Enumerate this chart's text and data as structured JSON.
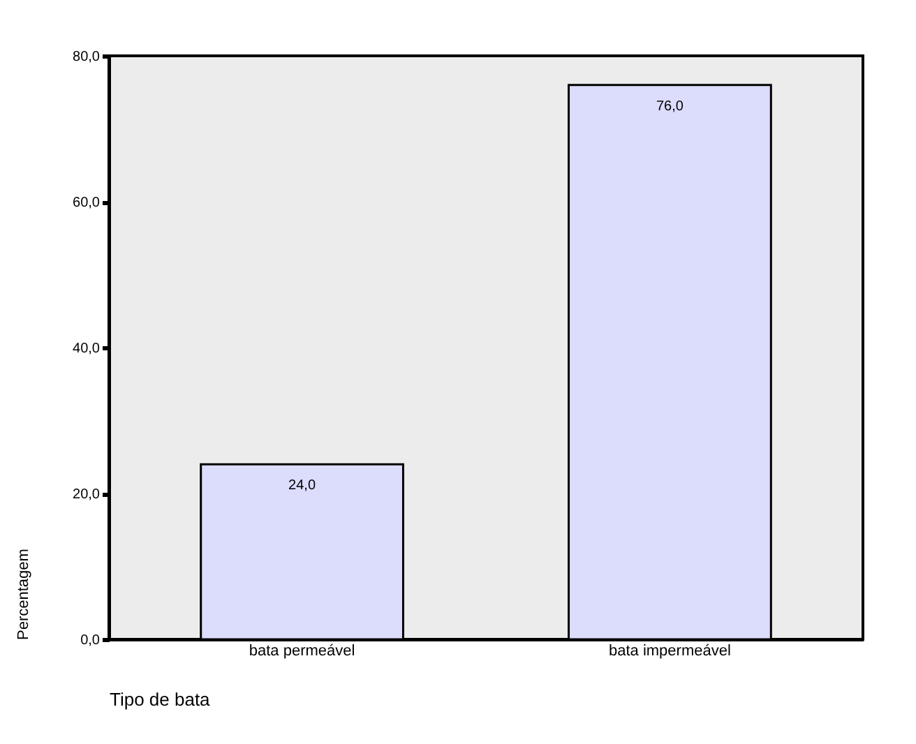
{
  "chart_data": {
    "type": "bar",
    "xlabel": "Tipo de bata",
    "ylabel": "Percentagem",
    "categories": [
      "bata permeável",
      "bata impermeável"
    ],
    "values": [
      24.0,
      76.0
    ],
    "value_labels": [
      "24,0",
      "76,0"
    ],
    "color": "#dcdcfc",
    "ylim": [
      0,
      80
    ],
    "yticks": [
      {
        "value": 0,
        "label": "0,0"
      },
      {
        "value": 20,
        "label": "20,0"
      },
      {
        "value": 40,
        "label": "40,0"
      },
      {
        "value": 60,
        "label": "60,0"
      },
      {
        "value": 80,
        "label": "80,0"
      }
    ],
    "grid": false
  }
}
